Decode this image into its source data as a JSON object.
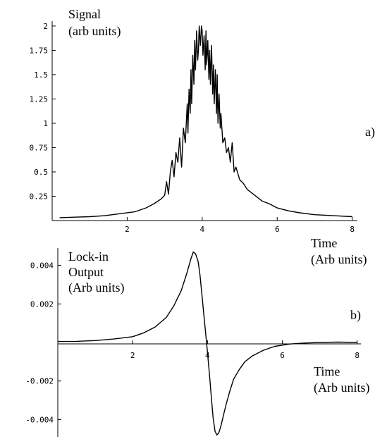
{
  "chart_data": [
    {
      "type": "line",
      "panel_label": "a)",
      "ylabel_lines": [
        "Signal",
        "(arb units)"
      ],
      "xlabel_lines": [
        "Time",
        "(Arb units)"
      ],
      "xlim": [
        0,
        8.1
      ],
      "ylim": [
        0,
        2.05
      ],
      "xticks": [
        2,
        4,
        6,
        8
      ],
      "xtick_labels": [
        "2",
        "4",
        "6",
        "8"
      ],
      "yticks": [
        0.25,
        0.5,
        0.75,
        1,
        1.25,
        1.5,
        1.75,
        2
      ],
      "ytick_labels": [
        "0.25",
        "0.5",
        "0.75",
        "1",
        "1.25",
        "1.5",
        "1.75",
        "2"
      ],
      "grid": false,
      "x": [
        0.2,
        0.6,
        1.0,
        1.4,
        1.8,
        2.2,
        2.5,
        2.7,
        2.9,
        3.0,
        3.05,
        3.1,
        3.15,
        3.2,
        3.25,
        3.3,
        3.35,
        3.4,
        3.45,
        3.5,
        3.55,
        3.6,
        3.62,
        3.65,
        3.68,
        3.7,
        3.72,
        3.75,
        3.78,
        3.8,
        3.82,
        3.85,
        3.88,
        3.9,
        3.92,
        3.95,
        3.98,
        4.0,
        4.02,
        4.05,
        4.08,
        4.1,
        4.12,
        4.15,
        4.18,
        4.2,
        4.22,
        4.25,
        4.28,
        4.3,
        4.32,
        4.35,
        4.38,
        4.4,
        4.42,
        4.45,
        4.48,
        4.5,
        4.55,
        4.6,
        4.65,
        4.7,
        4.75,
        4.8,
        4.85,
        4.9,
        5.0,
        5.1,
        5.2,
        5.4,
        5.6,
        5.8,
        6.0,
        6.3,
        6.6,
        7.0,
        7.5,
        8.0
      ],
      "y": [
        0.03,
        0.035,
        0.04,
        0.05,
        0.07,
        0.09,
        0.13,
        0.17,
        0.22,
        0.26,
        0.4,
        0.27,
        0.5,
        0.62,
        0.45,
        0.7,
        0.6,
        0.85,
        0.55,
        0.95,
        0.8,
        1.2,
        0.9,
        1.35,
        1.1,
        1.55,
        1.2,
        1.7,
        1.4,
        1.85,
        1.55,
        1.95,
        1.65,
        1.75,
        2.0,
        1.8,
        2.0,
        1.95,
        1.7,
        1.9,
        1.55,
        1.95,
        1.6,
        1.85,
        1.45,
        1.75,
        1.4,
        1.8,
        1.3,
        1.6,
        1.2,
        1.55,
        1.1,
        1.5,
        1.0,
        1.3,
        0.95,
        1.1,
        0.8,
        0.85,
        0.7,
        0.75,
        0.6,
        0.8,
        0.5,
        0.55,
        0.42,
        0.38,
        0.32,
        0.26,
        0.2,
        0.17,
        0.13,
        0.1,
        0.08,
        0.06,
        0.05,
        0.04
      ]
    },
    {
      "type": "line",
      "panel_label": "b)",
      "ylabel_lines": [
        "Lock-in",
        "Output",
        "(Arb units)"
      ],
      "xlabel_lines": [
        "Time",
        "(Arb units)"
      ],
      "xlim": [
        0,
        8.1
      ],
      "ylim": [
        -0.0049,
        0.0049
      ],
      "xticks": [
        2,
        4,
        6,
        8
      ],
      "xtick_labels": [
        "2",
        "4",
        "6",
        "8"
      ],
      "yticks": [
        0.004,
        0.002,
        -0.002,
        -0.004
      ],
      "ytick_labels": [
        "0.004",
        "0.002",
        "-0.002",
        "-0.004"
      ],
      "grid": false,
      "x": [
        0.0,
        0.5,
        1.0,
        1.5,
        2.0,
        2.3,
        2.6,
        2.9,
        3.1,
        3.3,
        3.45,
        3.55,
        3.62,
        3.68,
        3.75,
        3.8,
        3.85,
        3.9,
        3.95,
        4.0,
        4.05,
        4.1,
        4.15,
        4.2,
        4.25,
        4.3,
        4.35,
        4.4,
        4.45,
        4.5,
        4.6,
        4.7,
        4.85,
        5.0,
        5.2,
        5.5,
        5.8,
        6.2,
        6.6,
        7.0,
        7.5,
        8.0
      ],
      "y": [
        5e-05,
        6e-05,
        0.0001,
        0.00018,
        0.0003,
        0.0005,
        0.0008,
        0.0013,
        0.0019,
        0.0027,
        0.0036,
        0.0043,
        0.0047,
        0.0046,
        0.0042,
        0.0035,
        0.0025,
        0.0015,
        0.0005,
        -0.0005,
        -0.0016,
        -0.0028,
        -0.0039,
        -0.0046,
        -0.0048,
        -0.0047,
        -0.0044,
        -0.004,
        -0.0036,
        -0.0032,
        -0.0025,
        -0.0019,
        -0.0014,
        -0.001,
        -0.0007,
        -0.0004,
        -0.0002,
        -8e-05,
        -3e-05,
        0.0,
        2e-05,
        0.0
      ]
    }
  ]
}
